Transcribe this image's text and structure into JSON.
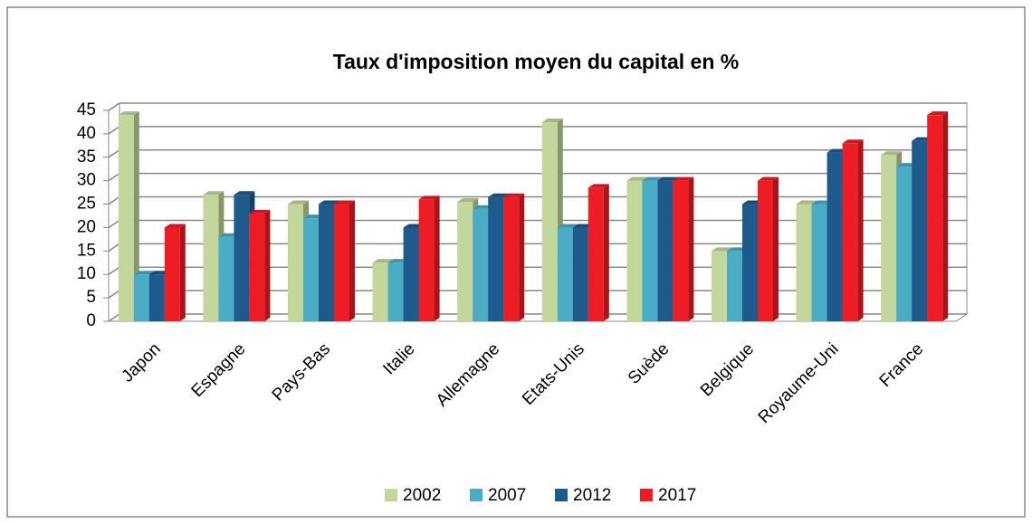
{
  "chart_data": {
    "type": "bar",
    "title": "Taux d'imposition moyen du capital en %",
    "categories": [
      "Japon",
      "Espagne",
      "Pays-Bas",
      "Italie",
      "Allemagne",
      "Etats-Unis",
      "Suède",
      "Belgique",
      "Royaume-Uni",
      "France"
    ],
    "series": [
      {
        "name": "2002",
        "color": "#c3d69b",
        "values": [
          44,
          27,
          25,
          12.5,
          25.5,
          42.5,
          30,
          15,
          25,
          35.5
        ]
      },
      {
        "name": "2007",
        "color": "#4bacc6",
        "values": [
          10,
          18,
          22,
          12.5,
          24,
          20,
          30,
          15,
          25,
          33
        ]
      },
      {
        "name": "2012",
        "color": "#1f5a8c",
        "values": [
          10,
          27,
          25,
          20,
          26.5,
          20,
          30,
          25,
          36,
          38.5
        ]
      },
      {
        "name": "2017",
        "color": "#ee1c24",
        "values": [
          20,
          23,
          25,
          26,
          26.5,
          28.5,
          30,
          30,
          38,
          44
        ]
      }
    ],
    "ylim": [
      0,
      45
    ],
    "yticks": [
      0,
      5,
      10,
      15,
      20,
      25,
      30,
      35,
      40,
      45
    ],
    "grid": true,
    "legend": "bottom"
  }
}
